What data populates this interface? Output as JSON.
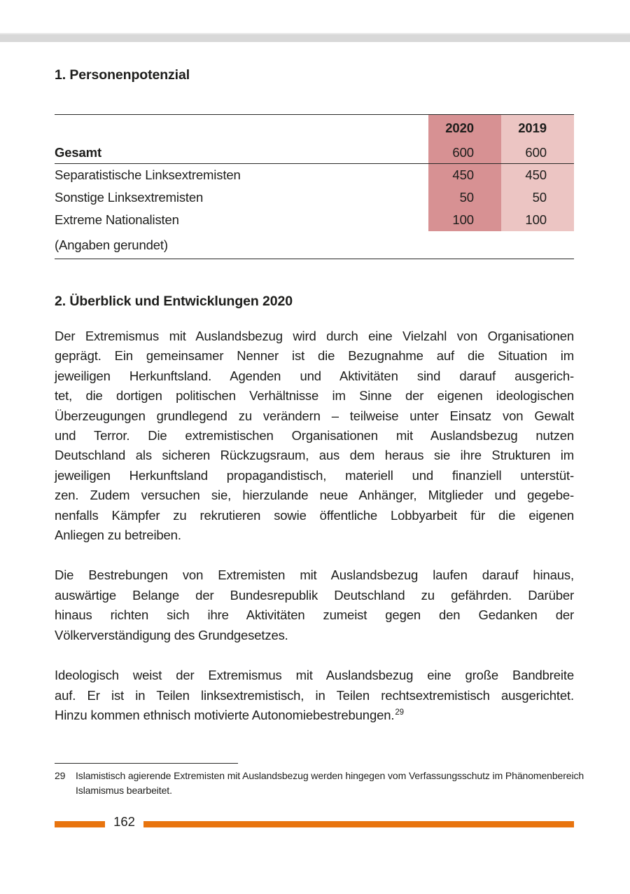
{
  "sections": {
    "s1_title": "1. Personenpotenzial",
    "s2_title": "2. Überblick und Entwicklungen 2020"
  },
  "table": {
    "years": [
      "2020",
      "2019"
    ],
    "rows": [
      {
        "label": "Gesamt",
        "values": [
          "600",
          "600"
        ]
      },
      {
        "label": "Separatistische Linksextremisten",
        "values": [
          "450",
          "450"
        ]
      },
      {
        "label": "Sonstige Linksextremisten",
        "values": [
          "50",
          "50"
        ]
      },
      {
        "label": "Extreme Nationalisten",
        "values": [
          "100",
          "100"
        ]
      }
    ],
    "note": "(Angaben gerundet)"
  },
  "body": {
    "p1_lines": [
      "Der Extremismus mit Auslandsbezug wird durch eine Vielzahl von Organisationen",
      "geprägt. Ein gemeinsamer Nenner ist die Bezugnahme auf die Situation im",
      "jeweiligen Herkunftsland. Agenden und Aktivitäten sind darauf ausgerich-",
      "tet, die dortigen politischen Verhältnisse im Sinne der eigenen ideologischen",
      "Überzeugungen grundlegend zu verändern – teilweise unter Einsatz von Gewalt",
      "und Terror. Die extremistischen Organisationen mit Auslandsbezug nutzen",
      "Deutschland als sicheren Rückzugsraum, aus dem heraus sie ihre Strukturen im",
      "jeweiligen Herkunftsland propagandistisch, materiell und finanziell unterstüt-",
      "zen. Zudem versuchen sie, hierzulande neue Anhänger, Mitglieder und gegebe-",
      "nenfalls Kämpfer zu rekrutieren sowie öffentliche Lobbyarbeit für die eigenen",
      "Anliegen zu betreiben."
    ],
    "p2_lines": [
      "Die Bestrebungen von Extremisten mit Auslandsbezug laufen darauf hinaus,",
      "auswärtige Belange der Bundesrepublik Deutschland zu gefährden. Darüber",
      "hinaus richten sich ihre Aktivitäten zumeist gegen den Gedanken der",
      "Völkerverständigung des Grundgesetzes."
    ],
    "p3_lines": [
      "Ideologisch weist der Extremismus mit Auslandsbezug eine große Bandbreite",
      "auf. Er ist in Teilen linksextremistisch, in Teilen rechtsextremistisch ausgerichtet."
    ],
    "p3_last_text": "Hinzu kommen ethnisch motivierte Autonomiebestrebungen.",
    "p3_footnote_ref": "29"
  },
  "footnote": {
    "number": "29",
    "lines": [
      "Islamistisch agierende Extremisten mit Auslandsbezug werden hingegen vom Verfassungsschutz im Phänomenbereich",
      "Islamismus bearbeitet."
    ]
  },
  "footer": {
    "page_number": "162"
  },
  "colors": {
    "accent_orange": "#e8740e",
    "table_col_2020": "#d79193",
    "table_col_2019": "#ecc5c3",
    "top_bar_gray": "#d8d8d8",
    "text_ink": "#1d1d1b"
  }
}
